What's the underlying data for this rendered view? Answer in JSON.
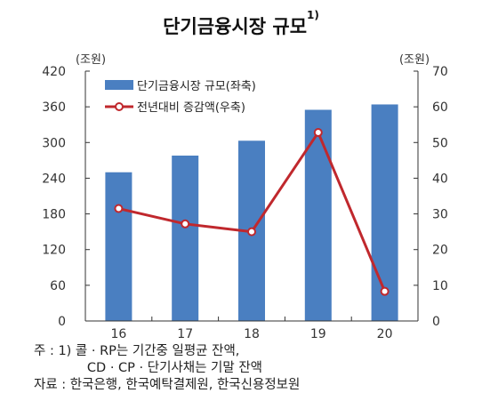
{
  "title": "단기금융시장 규모",
  "title_sup": "1)",
  "chart_data": {
    "type": "bar+line",
    "categories": [
      "16",
      "17",
      "18",
      "19",
      "20"
    ],
    "series": [
      {
        "name": "단기금융시장 규모(좌축)",
        "type": "bar",
        "axis": "left",
        "values": [
          250,
          278,
          303,
          355,
          364
        ],
        "color": "#4a7fc1"
      },
      {
        "name": "전년대비 증감액(우축)",
        "type": "line",
        "axis": "right",
        "values": [
          31.5,
          27.2,
          25,
          52.8,
          8.3
        ],
        "color": "#c0282d"
      }
    ],
    "left_axis": {
      "unit": "(조원)",
      "ylim": [
        0,
        420
      ],
      "ticks": [
        0,
        60,
        120,
        180,
        240,
        300,
        360,
        420
      ]
    },
    "right_axis": {
      "unit": "(조원)",
      "ylim": [
        0,
        70
      ],
      "ticks": [
        0,
        10,
        20,
        30,
        40,
        50,
        60,
        70
      ]
    },
    "legend_position": "top-left",
    "grid": false
  },
  "notes": {
    "line1": "주 : 1) 콜 · RP는 기간중 일평균 잔액,",
    "line2": "             CD · CP · 단기사채는 기말 잔액",
    "line3": "자료 : 한국은행, 한국예탁결제원, 한국신용정보원"
  }
}
